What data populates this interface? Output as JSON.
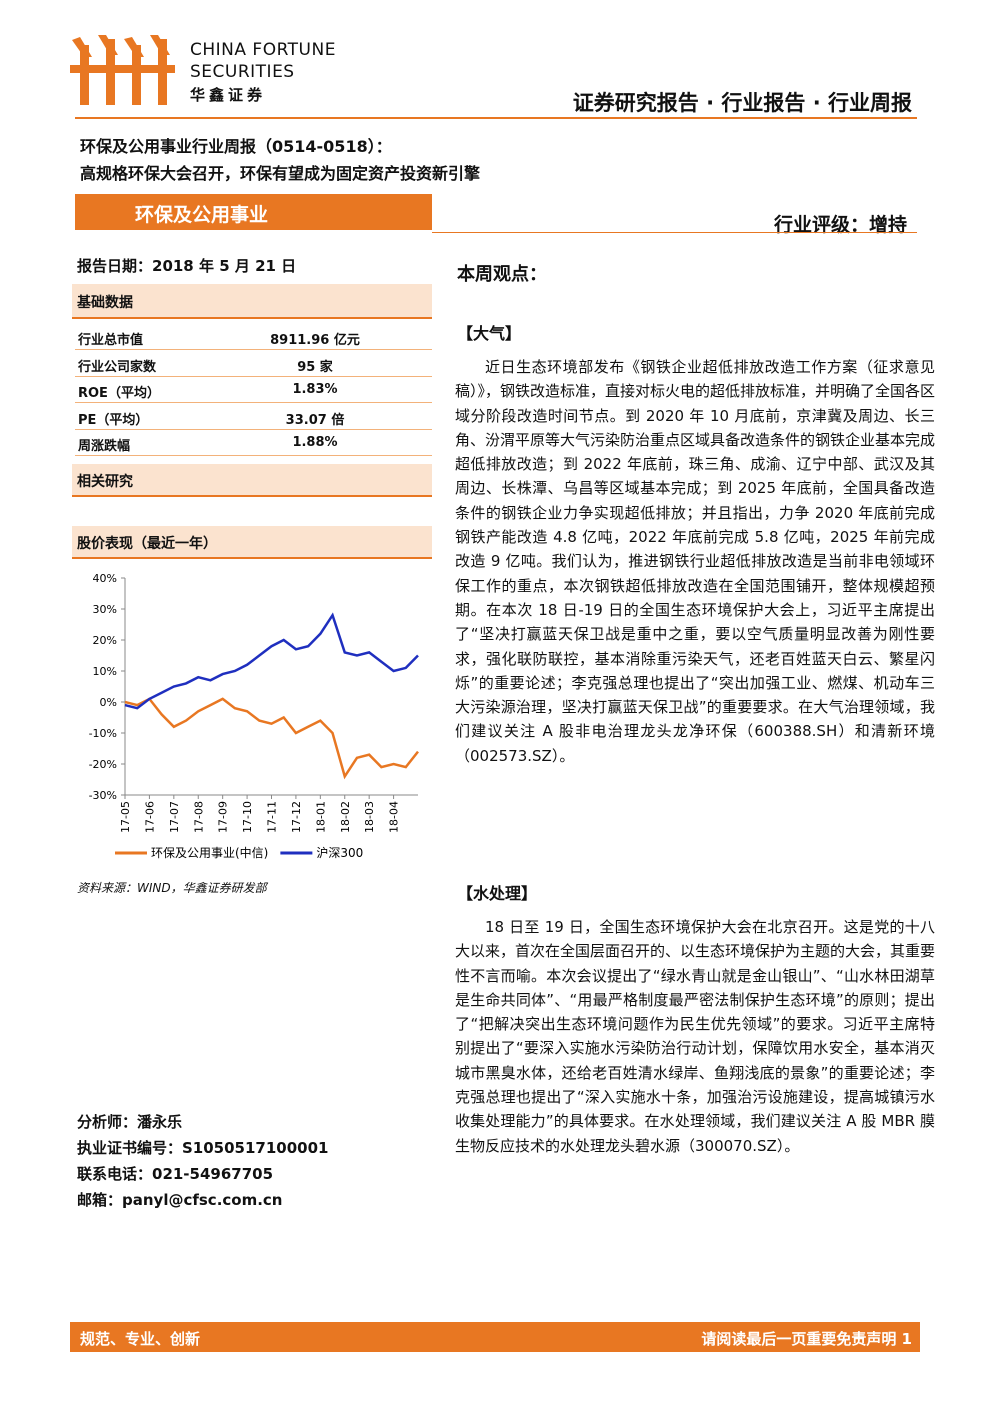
{
  "header": {
    "company_en_1": "CHINA FORTUNE",
    "company_en_2": "SECURITIES",
    "company_cn": "华鑫证券",
    "report_type": "证券研究报告 · 行业报告 · 行业周报"
  },
  "title": {
    "line1": "环保及公用事业行业周报（0514-0518）：",
    "line2": "高规格环保大会召开，环保有望成为固定资产投资新引擎"
  },
  "sector": "环保及公用事业",
  "rating": "行业评级：增持",
  "report_date": "报告日期：2018 年 5 月 21 日",
  "basic_data": {
    "heading": "基础数据",
    "rows": [
      [
        "行业总市值",
        "8911.96 亿元"
      ],
      [
        "行业公司家数",
        "95 家"
      ],
      [
        "ROE（平均）",
        "1.83%"
      ],
      [
        "PE（平均）",
        "33.07 倍"
      ],
      [
        "周涨跌幅",
        "1.88%"
      ]
    ]
  },
  "related_research": "相关研究",
  "price_heading": "股价表现（最近一年）",
  "chart_data": {
    "type": "line",
    "categories": [
      "17-05",
      null,
      "17-06",
      null,
      "17-07",
      null,
      "17-08",
      null,
      "17-09",
      null,
      "17-10",
      null,
      "17-11",
      null,
      "17-12",
      null,
      "18-01",
      null,
      "18-02",
      null,
      "18-03",
      null,
      "18-04",
      null,
      null
    ],
    "series": [
      {
        "name": "环保及公用事业(中信)",
        "color": "#e87722",
        "values": [
          0,
          -1,
          1,
          -4,
          -8,
          -6,
          -3,
          -1,
          1,
          -2,
          -3,
          -6,
          -7,
          -5,
          -10,
          -8,
          -6,
          -10,
          -24,
          -18,
          -17,
          -21,
          -20,
          -21,
          -16
        ]
      },
      {
        "name": "沪深300",
        "color": "#1f2fbf",
        "values": [
          -1,
          -2,
          1,
          3,
          5,
          6,
          8,
          7,
          9,
          10,
          12,
          15,
          18,
          20,
          17,
          18,
          22,
          28,
          16,
          15,
          16,
          13,
          10,
          11,
          15
        ]
      }
    ],
    "ylim": [
      -30,
      40
    ],
    "yticks": [
      {
        "value": 40,
        "label": "40%"
      },
      {
        "value": 30,
        "label": "30%"
      },
      {
        "value": 20,
        "label": "20%"
      },
      {
        "value": 10,
        "label": "10%"
      },
      {
        "value": 0,
        "label": "0%"
      },
      {
        "value": -10,
        "label": "-10%"
      },
      {
        "value": -20,
        "label": "-20%"
      },
      {
        "value": -30,
        "label": "-30%"
      }
    ]
  },
  "source": "资料来源：WIND，华鑫证券研发部",
  "analyst": {
    "name": "分析师：潘永乐",
    "license": "执业证书编号：S1050517100001",
    "phone": "联系电话：021-54967705",
    "email": "邮箱：panyl@cfsc.com.cn"
  },
  "view_heading": "本周观点：",
  "sections": [
    {
      "heading": "【大气】",
      "text": "近日生态环境部发布《钢铁企业超低排放改造工作方案（征求意见稿）》，钢铁改造标准，直接对标火电的超低排放标准，并明确了全国各区域分阶段改造时间节点。到 2020 年 10 月底前，京津冀及周边、长三角、汾渭平原等大气污染防治重点区域具备改造条件的钢铁企业基本完成超低排放改造；到 2022 年底前，珠三角、成渝、辽宁中部、武汉及其周边、长株潭、乌昌等区域基本完成；到 2025 年底前，全国具备改造条件的钢铁企业力争实现超低排放；并且指出，力争 2020 年底前完成钢铁产能改造 4.8 亿吨，2022 年底前完成 5.8 亿吨，2025 年前完成改造 9 亿吨。我们认为，推进钢铁行业超低排放改造是当前非电领域环保工作的重点，本次钢铁超低排放改造在全国范围铺开，整体规模超预期。在本次 18 日-19 日的全国生态环境保护大会上，习近平主席提出了“坚决打赢蓝天保卫战是重中之重，要以空气质量明显改善为刚性要求，强化联防联控，基本消除重污染天气，还老百姓蓝天白云、繁星闪烁”的重要论述；李克强总理也提出了“突出加强工业、燃煤、机动车三大污染源治理，坚决打赢蓝天保卫战”的重要要求。在大气治理领域，我们建议关注 A 股非电治理龙头龙净环保（600388.SH）和清新环境（002573.SZ）。"
    },
    {
      "heading": "【水处理】",
      "text": "18 日至 19 日，全国生态环境保护大会在北京召开。这是党的十八大以来，首次在全国层面召开的、以生态环境保护为主题的大会，其重要性不言而喻。本次会议提出了“绿水青山就是金山银山”、“山水林田湖草是生命共同体”、“用最严格制度最严密法制保护生态环境”的原则；提出了“把解决突出生态环境问题作为民生优先领域”的要求。习近平主席特别提出了“要深入实施水污染防治行动计划，保障饮用水安全，基本消灭城市黑臭水体，还给老百姓清水绿岸、鱼翔浅底的景象”的重要论述；李克强总理也提出了“深入实施水十条，加强治污设施建设，提高城镇污水收集处理能力”的具体要求。在水处理领域，我们建议关注 A 股 MBR 膜生物反应技术的水处理龙头碧水源（300070.SZ）。"
    }
  ],
  "footer": {
    "left": "规范、专业、创新",
    "right": "请阅读最后一页重要免责声明 1"
  }
}
